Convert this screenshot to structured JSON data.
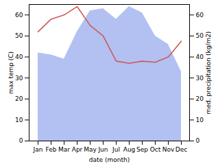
{
  "chart_data": {
    "type": "line",
    "x_label": "date (month)",
    "y_label": "max temp (C)",
    "y2_label": "med. precipitation (kg/m2)",
    "categories": [
      "Jan",
      "Feb",
      "Mar",
      "Apr",
      "May",
      "Jun",
      "Jul",
      "Aug",
      "Sep",
      "Oct",
      "Nov",
      "Dec"
    ],
    "ylim": [
      0,
      65
    ],
    "yticks": [
      0,
      10,
      20,
      30,
      40,
      50,
      60
    ],
    "y2lim": [
      0,
      65
    ],
    "y2ticks": [
      0,
      10,
      20,
      30,
      40,
      50,
      60
    ],
    "series": [
      {
        "type": "area",
        "axis": "y2",
        "color": "#b3c1f2",
        "values": [
          42,
          41,
          39,
          52,
          62,
          63,
          58,
          64,
          61,
          50,
          46,
          33
        ]
      },
      {
        "type": "line",
        "color": "#cd5a5a",
        "values": [
          52,
          58,
          60,
          64,
          55,
          50,
          38,
          37,
          38,
          37.5,
          40,
          47.5
        ]
      }
    ]
  }
}
